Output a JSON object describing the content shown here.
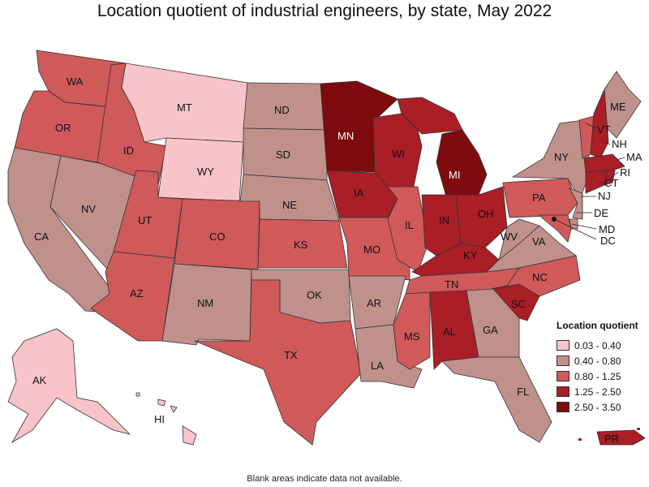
{
  "title": "Location quotient of industrial engineers, by state, May 2022",
  "note": "Blank areas indicate data not available.",
  "legend": {
    "title": "Location quotient",
    "items": [
      {
        "label": "0.03 - 0.40",
        "color": "#f9c4c9"
      },
      {
        "label": "0.40 - 0.80",
        "color": "#c0918b"
      },
      {
        "label": "0.80 - 1.25",
        "color": "#d0595a"
      },
      {
        "label": "1.25 - 2.50",
        "color": "#aa1e26"
      },
      {
        "label": "2.50 - 3.50",
        "color": "#7d0b0d"
      }
    ]
  },
  "states": {
    "WA": "WA",
    "OR": "OR",
    "CA": "CA",
    "ID": "ID",
    "NV": "NV",
    "MT": "MT",
    "WY": "WY",
    "UT": "UT",
    "AZ": "AZ",
    "CO": "CO",
    "NM": "NM",
    "ND": "ND",
    "SD": "SD",
    "NE": "NE",
    "KS": "KS",
    "OK": "OK",
    "TX": "TX",
    "MN": "MN",
    "IA": "IA",
    "MO": "MO",
    "AR": "AR",
    "LA": "LA",
    "WI": "WI",
    "IL": "IL",
    "MI": "MI",
    "IN": "IN",
    "OH": "OH",
    "KY": "KY",
    "TN": "TN",
    "MS": "MS",
    "AL": "AL",
    "GA": "GA",
    "FL": "FL",
    "SC": "SC",
    "NC": "NC",
    "VA": "VA",
    "WV": "WV",
    "PA": "PA",
    "NY": "NY",
    "ME": "ME",
    "VT": "VT",
    "NH": "NH",
    "MA": "MA",
    "RI": "RI",
    "CT": "CT",
    "NJ": "NJ",
    "DE": "DE",
    "MD": "MD",
    "DC": "DC",
    "AK": "AK",
    "HI": "HI",
    "PR": "PR"
  }
}
